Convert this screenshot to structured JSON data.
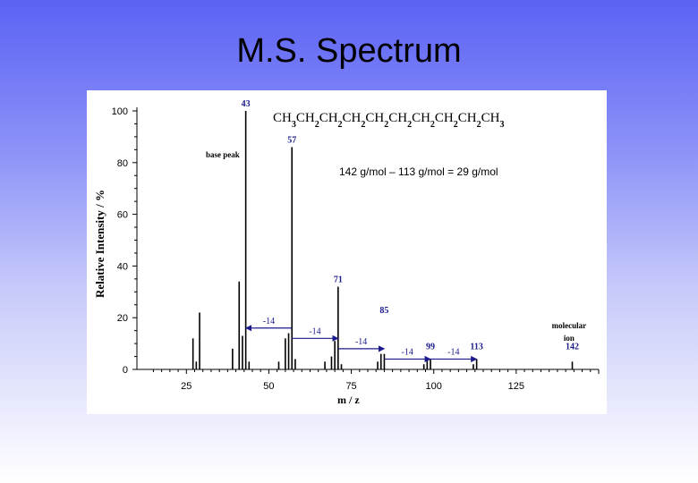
{
  "slide": {
    "title": "M.S. Spectrum"
  },
  "chart_data": {
    "type": "bar",
    "title": "",
    "xlabel": "m / z",
    "ylabel": "Relative Intensity / %",
    "xlim": [
      10,
      150
    ],
    "ylim": [
      0,
      100
    ],
    "x_ticks": [
      25,
      50,
      75,
      100,
      125
    ],
    "y_ticks": [
      0,
      20,
      40,
      60,
      80,
      100
    ],
    "grid": false,
    "legend": "none",
    "formula": {
      "parts": [
        "CH",
        "3",
        "CH",
        "2",
        "CH",
        "2",
        "CH",
        "2",
        "CH",
        "2",
        "CH",
        "2",
        "CH",
        "2",
        "CH",
        "2",
        "CH",
        "2",
        "CH",
        "3"
      ]
    },
    "equation": "142 g/mol – 113 g/mol = 29 g/mol",
    "peaks": [
      {
        "x": 27,
        "y": 12
      },
      {
        "x": 28,
        "y": 3
      },
      {
        "x": 29,
        "y": 22
      },
      {
        "x": 39,
        "y": 8
      },
      {
        "x": 41,
        "y": 34
      },
      {
        "x": 42,
        "y": 13
      },
      {
        "x": 43,
        "y": 100
      },
      {
        "x": 44,
        "y": 3
      },
      {
        "x": 53,
        "y": 3
      },
      {
        "x": 55,
        "y": 12
      },
      {
        "x": 56,
        "y": 14
      },
      {
        "x": 57,
        "y": 86
      },
      {
        "x": 58,
        "y": 4
      },
      {
        "x": 67,
        "y": 3
      },
      {
        "x": 69,
        "y": 5
      },
      {
        "x": 70,
        "y": 11
      },
      {
        "x": 71,
        "y": 32
      },
      {
        "x": 72,
        "y": 2
      },
      {
        "x": 83,
        "y": 3
      },
      {
        "x": 84,
        "y": 6
      },
      {
        "x": 85,
        "y": 6
      },
      {
        "x": 97,
        "y": 2
      },
      {
        "x": 98,
        "y": 4
      },
      {
        "x": 99,
        "y": 4
      },
      {
        "x": 112,
        "y": 2
      },
      {
        "x": 113,
        "y": 4
      },
      {
        "x": 142,
        "y": 3
      }
    ],
    "peak_labels": [
      {
        "text": "43",
        "x": 43,
        "y": 100,
        "style": "bold"
      },
      {
        "text": "57",
        "x": 57,
        "y": 86,
        "style": "bold"
      },
      {
        "text": "71",
        "x": 71,
        "y": 32,
        "style": "bold"
      },
      {
        "text": "85",
        "x": 85,
        "y": 20,
        "style": "bold"
      },
      {
        "text": "99",
        "x": 99,
        "y": 6,
        "style": "bold"
      },
      {
        "text": "113",
        "x": 113,
        "y": 6,
        "style": "bold"
      },
      {
        "text": "142",
        "x": 142,
        "y": 6,
        "style": "bold"
      }
    ],
    "annotations": [
      {
        "text": "base peak",
        "x": 36,
        "y": 82
      },
      {
        "text": "molecular",
        "x": 141,
        "y": 16
      },
      {
        "text": "ion",
        "x": 141,
        "y": 11
      }
    ],
    "losses": [
      {
        "text": "-14",
        "from": 57,
        "to": 43,
        "y": 16
      },
      {
        "text": "-14",
        "from": 57,
        "to": 71,
        "y": 12
      },
      {
        "text": "-14",
        "from": 71,
        "to": 85,
        "y": 8
      },
      {
        "text": "-14",
        "from": 85,
        "to": 99,
        "y": 4
      },
      {
        "text": "-14",
        "from": 99,
        "to": 113,
        "y": 4
      }
    ]
  }
}
